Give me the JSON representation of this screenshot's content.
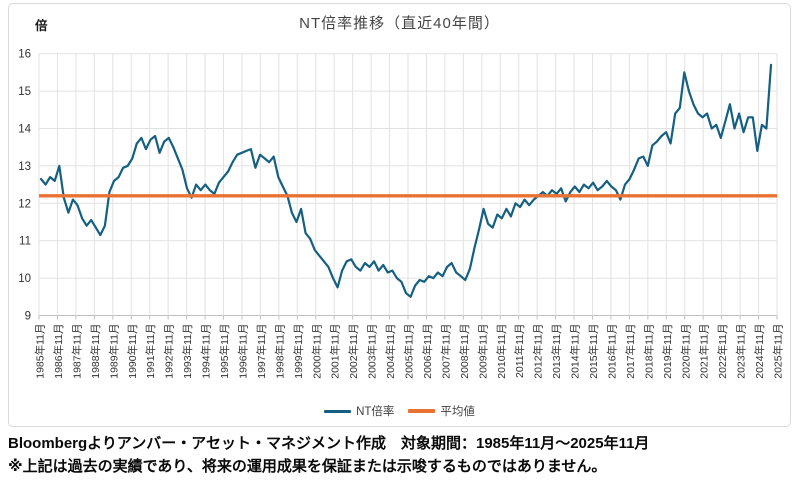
{
  "chart": {
    "title": "NT倍率推移（直近40年間）",
    "y_unit_label": "倍",
    "footer_line1": "Bloombergよりアンバー・アセット・マネジメント作成　対象期間：1985年11月～2025年11月",
    "footer_line2": "※上記は過去の実績であり、将来の運用成果を保証または示唆するものではありません。"
  },
  "chart_data": {
    "type": "line",
    "title": "NT倍率推移（直近40年間）",
    "ylabel": "倍",
    "ylim": [
      9,
      16
    ],
    "y_ticks": [
      16,
      15,
      14,
      13,
      12,
      11,
      10,
      9
    ],
    "x_start": "1985年11月",
    "x_end": "2025年11月",
    "points_per_year": 4,
    "grid": true,
    "legend_position": "bottom",
    "x_tick_labels": [
      "1985年11月",
      "1986年11月",
      "1987年11月",
      "1988年11月",
      "1989年11月",
      "1990年11月",
      "1991年11月",
      "1992年11月",
      "1993年11月",
      "1994年11月",
      "1995年11月",
      "1996年11月",
      "1997年11月",
      "1998年11月",
      "1999年11月",
      "2000年11月",
      "2001年11月",
      "2002年11月",
      "2003年11月",
      "2004年11月",
      "2005年11月",
      "2006年11月",
      "2007年11月",
      "2008年11月",
      "2009年11月",
      "2010年11月",
      "2011年11月",
      "2012年11月",
      "2013年11月",
      "2014年11月",
      "2015年11月",
      "2016年11月",
      "2017年11月",
      "2018年11月",
      "2019年11月",
      "2020年11月",
      "2021年11月",
      "2022年11月",
      "2023年11月",
      "2024年11月",
      "2025年11月"
    ],
    "series": [
      {
        "name": "NT倍率",
        "color": "#156082",
        "values": [
          12.65,
          12.5,
          12.7,
          12.6,
          13.0,
          12.15,
          11.75,
          12.1,
          11.95,
          11.6,
          11.4,
          11.55,
          11.35,
          11.15,
          11.4,
          12.3,
          12.6,
          12.7,
          12.95,
          13.0,
          13.2,
          13.6,
          13.75,
          13.45,
          13.7,
          13.8,
          13.35,
          13.65,
          13.75,
          13.5,
          13.2,
          12.9,
          12.4,
          12.15,
          12.5,
          12.35,
          12.5,
          12.35,
          12.25,
          12.55,
          12.7,
          12.85,
          13.1,
          13.3,
          13.35,
          13.4,
          13.45,
          12.95,
          13.3,
          13.2,
          13.1,
          13.25,
          12.7,
          12.45,
          12.2,
          11.75,
          11.5,
          11.85,
          11.2,
          11.05,
          10.75,
          10.6,
          10.45,
          10.3,
          10.0,
          9.75,
          10.2,
          10.45,
          10.5,
          10.3,
          10.2,
          10.4,
          10.3,
          10.45,
          10.2,
          10.35,
          10.15,
          10.2,
          10.0,
          9.9,
          9.6,
          9.5,
          9.8,
          9.95,
          9.9,
          10.05,
          10.0,
          10.15,
          10.05,
          10.3,
          10.4,
          10.15,
          10.05,
          9.95,
          10.25,
          10.8,
          11.3,
          11.85,
          11.45,
          11.35,
          11.7,
          11.6,
          11.85,
          11.65,
          12.0,
          11.9,
          12.1,
          11.95,
          12.1,
          12.2,
          12.3,
          12.2,
          12.35,
          12.25,
          12.4,
          12.05,
          12.3,
          12.45,
          12.3,
          12.5,
          12.4,
          12.55,
          12.35,
          12.45,
          12.6,
          12.45,
          12.35,
          12.1,
          12.5,
          12.65,
          12.9,
          13.2,
          13.25,
          13.0,
          13.55,
          13.65,
          13.8,
          13.9,
          13.6,
          14.4,
          14.55,
          15.5,
          15.0,
          14.65,
          14.4,
          14.3,
          14.4,
          14.0,
          14.1,
          13.75,
          14.2,
          14.65,
          14.0,
          14.4,
          13.9,
          14.3,
          14.3,
          13.4,
          14.1,
          14.0,
          15.7
        ]
      },
      {
        "name": "平均値",
        "color": "#E97132",
        "constant_value": 12.2
      }
    ]
  }
}
